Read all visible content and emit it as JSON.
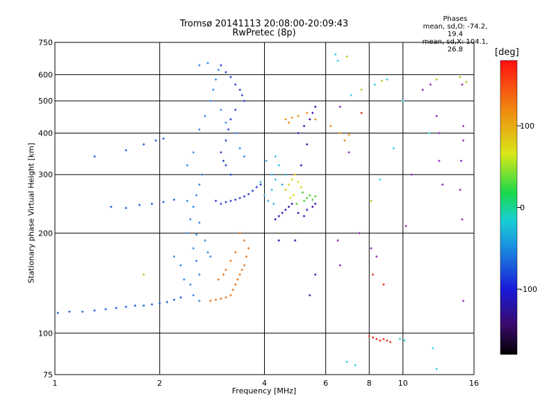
{
  "header": {
    "title": "Tromsø 20141113 20:08:00-20:09:43",
    "subtitle": "RwPretec (8p)"
  },
  "phases": {
    "heading": "Phases",
    "line1": "mean, sd,O: -74.2, 19.4",
    "line2": "mean, sd,X: 104.1, 26.8"
  },
  "colorbar": {
    "unit": "[deg]",
    "ticks": [
      "100",
      "0",
      "-100"
    ],
    "tick_values": [
      100,
      0,
      -100
    ],
    "range": [
      -180,
      180
    ]
  },
  "chart_data": {
    "type": "scatter",
    "xlabel": "Frequency [MHz]",
    "ylabel": "Stationary phase Virtual Height [km]",
    "x_scale": "log",
    "y_scale": "log",
    "xlim": [
      1,
      16
    ],
    "ylim": [
      75,
      750
    ],
    "x_ticks": [
      1,
      2,
      4,
      6,
      8,
      10,
      16
    ],
    "x_tick_labels": [
      "1",
      "2",
      "4",
      "6",
      "8",
      "10",
      "16"
    ],
    "y_ticks": [
      75,
      100,
      200,
      300,
      400,
      500,
      600,
      750
    ],
    "y_tick_labels": [
      "75",
      "100",
      "200",
      "300",
      "400",
      "500",
      "600",
      "750"
    ],
    "grid": true,
    "series": [
      {
        "color": "#1f5fd8",
        "points": [
          [
            1.02,
            115
          ],
          [
            1.1,
            116
          ],
          [
            1.2,
            116
          ],
          [
            1.3,
            117
          ],
          [
            1.4,
            118
          ],
          [
            1.5,
            119
          ],
          [
            1.6,
            120
          ],
          [
            1.7,
            121
          ],
          [
            1.8,
            121
          ],
          [
            1.9,
            122
          ],
          [
            2.0,
            123
          ],
          [
            2.1,
            124
          ],
          [
            2.2,
            126
          ],
          [
            2.3,
            128
          ],
          [
            1.45,
            240
          ],
          [
            1.6,
            238
          ],
          [
            1.75,
            243
          ],
          [
            1.9,
            245
          ],
          [
            2.05,
            248
          ],
          [
            2.2,
            252
          ],
          [
            1.3,
            340
          ],
          [
            1.6,
            355
          ],
          [
            1.8,
            370
          ],
          [
            1.95,
            380
          ],
          [
            2.05,
            385
          ]
        ]
      },
      {
        "color": "#2e8ae6",
        "points": [
          [
            2.4,
            200
          ],
          [
            2.45,
            220
          ],
          [
            2.5,
            240
          ],
          [
            2.55,
            260
          ],
          [
            2.6,
            280
          ],
          [
            2.65,
            300
          ],
          [
            2.5,
            180
          ],
          [
            2.55,
            165
          ],
          [
            2.6,
            150
          ],
          [
            2.45,
            140
          ],
          [
            2.5,
            130
          ],
          [
            2.6,
            125
          ],
          [
            2.3,
            160
          ],
          [
            2.2,
            170
          ],
          [
            2.35,
            145
          ],
          [
            2.7,
            190
          ],
          [
            2.75,
            175
          ],
          [
            2.8,
            170
          ],
          [
            2.4,
            320
          ],
          [
            2.5,
            350
          ],
          [
            2.6,
            410
          ],
          [
            2.7,
            450
          ],
          [
            2.8,
            500
          ],
          [
            2.85,
            540
          ],
          [
            2.9,
            580
          ],
          [
            2.95,
            620
          ],
          [
            2.6,
            640
          ],
          [
            2.75,
            650
          ],
          [
            3.0,
            470
          ],
          [
            3.1,
            430
          ],
          [
            3.3,
            400
          ],
          [
            3.4,
            360
          ],
          [
            3.5,
            340
          ],
          [
            2.4,
            250
          ],
          [
            2.6,
            215
          ],
          [
            2.55,
            198
          ]
        ]
      },
      {
        "color": "#2a3fd0",
        "points": [
          [
            3.0,
            640
          ],
          [
            3.1,
            610
          ],
          [
            3.2,
            590
          ],
          [
            3.3,
            560
          ],
          [
            3.4,
            540
          ],
          [
            3.45,
            520
          ],
          [
            3.5,
            500
          ],
          [
            3.3,
            470
          ],
          [
            3.2,
            440
          ],
          [
            3.15,
            410
          ],
          [
            3.1,
            380
          ],
          [
            3.0,
            350
          ],
          [
            3.05,
            330
          ],
          [
            3.1,
            320
          ],
          [
            3.2,
            300
          ],
          [
            2.9,
            250
          ],
          [
            3.0,
            245
          ],
          [
            3.1,
            248
          ],
          [
            3.2,
            250
          ],
          [
            3.3,
            252
          ],
          [
            3.4,
            255
          ],
          [
            3.5,
            258
          ],
          [
            3.6,
            262
          ],
          [
            3.7,
            268
          ],
          [
            3.8,
            275
          ],
          [
            3.9,
            280
          ]
        ]
      },
      {
        "color": "#3cb0ea",
        "points": [
          [
            4.1,
            250
          ],
          [
            4.2,
            270
          ],
          [
            4.3,
            290
          ],
          [
            4.2,
            300
          ],
          [
            4.4,
            320
          ],
          [
            4.3,
            340
          ],
          [
            4.0,
            260
          ],
          [
            4.5,
            280
          ],
          [
            4.6,
            300
          ],
          [
            3.9,
            285
          ],
          [
            4.05,
            330
          ],
          [
            4.25,
            245
          ]
        ]
      },
      {
        "color": "#e8761c",
        "points": [
          [
            2.8,
            125
          ],
          [
            2.9,
            126
          ],
          [
            3.0,
            127
          ],
          [
            3.1,
            128
          ],
          [
            3.2,
            130
          ],
          [
            3.25,
            135
          ],
          [
            3.3,
            140
          ],
          [
            3.35,
            145
          ],
          [
            3.4,
            150
          ],
          [
            3.45,
            155
          ],
          [
            3.5,
            160
          ],
          [
            3.55,
            170
          ],
          [
            3.6,
            180
          ],
          [
            3.5,
            190
          ],
          [
            3.4,
            200
          ],
          [
            3.3,
            175
          ],
          [
            3.2,
            165
          ],
          [
            3.1,
            155
          ],
          [
            3.05,
            150
          ],
          [
            2.95,
            145
          ]
        ]
      },
      {
        "color": "#e0d21a",
        "points": [
          [
            4.6,
            270
          ],
          [
            4.7,
            280
          ],
          [
            4.8,
            290
          ],
          [
            4.9,
            300
          ],
          [
            5.0,
            285
          ],
          [
            4.85,
            260
          ],
          [
            4.75,
            255
          ],
          [
            5.1,
            275
          ]
        ]
      },
      {
        "color": "#55cc33",
        "points": [
          [
            5.2,
            250
          ],
          [
            5.3,
            255
          ],
          [
            5.4,
            260
          ],
          [
            5.5,
            252
          ],
          [
            5.6,
            258
          ],
          [
            4.95,
            245
          ],
          [
            5.15,
            265
          ]
        ]
      },
      {
        "color": "#3b14b0",
        "points": [
          [
            4.3,
            220
          ],
          [
            4.4,
            225
          ],
          [
            4.5,
            230
          ],
          [
            4.6,
            235
          ],
          [
            4.7,
            240
          ],
          [
            4.8,
            245
          ],
          [
            5.0,
            230
          ],
          [
            5.2,
            225
          ],
          [
            5.3,
            235
          ],
          [
            5.5,
            240
          ],
          [
            5.6,
            245
          ],
          [
            5.0,
            400
          ],
          [
            5.2,
            420
          ],
          [
            5.4,
            440
          ],
          [
            5.5,
            460
          ],
          [
            5.6,
            480
          ],
          [
            4.9,
            190
          ],
          [
            5.6,
            150
          ],
          [
            5.4,
            130
          ],
          [
            4.4,
            190
          ],
          [
            5.1,
            320
          ],
          [
            5.3,
            370
          ]
        ]
      },
      {
        "color": "#f08a1a",
        "points": [
          [
            4.6,
            440
          ],
          [
            4.7,
            430
          ],
          [
            4.8,
            445
          ],
          [
            5.0,
            450
          ],
          [
            5.3,
            460
          ],
          [
            5.6,
            440
          ],
          [
            6.2,
            420
          ],
          [
            6.6,
            400
          ],
          [
            6.8,
            380
          ],
          [
            7.0,
            395
          ]
        ]
      },
      {
        "color": "#e23020",
        "points": [
          [
            8.0,
            98
          ],
          [
            8.2,
            97
          ],
          [
            8.4,
            96
          ],
          [
            8.6,
            95
          ],
          [
            8.8,
            96
          ],
          [
            9.0,
            95
          ],
          [
            9.2,
            94
          ],
          [
            7.6,
            460
          ],
          [
            8.8,
            140
          ],
          [
            8.2,
            150
          ]
        ]
      },
      {
        "color": "#8a2cc0",
        "points": [
          [
            6.6,
            480
          ],
          [
            7.0,
            350
          ],
          [
            6.5,
            190
          ],
          [
            6.6,
            160
          ],
          [
            7.5,
            200
          ],
          [
            8.1,
            180
          ],
          [
            8.4,
            170
          ],
          [
            10.2,
            210
          ],
          [
            10.6,
            300
          ],
          [
            11.4,
            540
          ],
          [
            12.0,
            560
          ],
          [
            12.5,
            450
          ],
          [
            12.7,
            400
          ],
          [
            12.7,
            330
          ],
          [
            13.0,
            280
          ],
          [
            14.8,
            560
          ],
          [
            14.9,
            420
          ],
          [
            14.9,
            380
          ],
          [
            14.7,
            330
          ],
          [
            14.6,
            270
          ],
          [
            14.8,
            220
          ],
          [
            14.9,
            125
          ]
        ]
      },
      {
        "color": "#36d0e0",
        "points": [
          [
            6.4,
            690
          ],
          [
            6.5,
            660
          ],
          [
            7.1,
            520
          ],
          [
            8.3,
            560
          ],
          [
            9.0,
            580
          ],
          [
            10.0,
            500
          ],
          [
            8.6,
            290
          ],
          [
            9.4,
            360
          ],
          [
            10.1,
            95
          ],
          [
            9.8,
            96
          ],
          [
            6.9,
            82
          ],
          [
            7.3,
            80
          ],
          [
            11.9,
            400
          ],
          [
            12.2,
            90
          ],
          [
            12.5,
            78
          ]
        ]
      },
      {
        "color": "#9ad61e",
        "points": [
          [
            6.9,
            680
          ],
          [
            7.6,
            540
          ],
          [
            8.7,
            575
          ],
          [
            12.5,
            580
          ],
          [
            14.6,
            590
          ],
          [
            15.2,
            570
          ],
          [
            8.1,
            250
          ],
          [
            1.8,
            150
          ]
        ]
      }
    ]
  }
}
